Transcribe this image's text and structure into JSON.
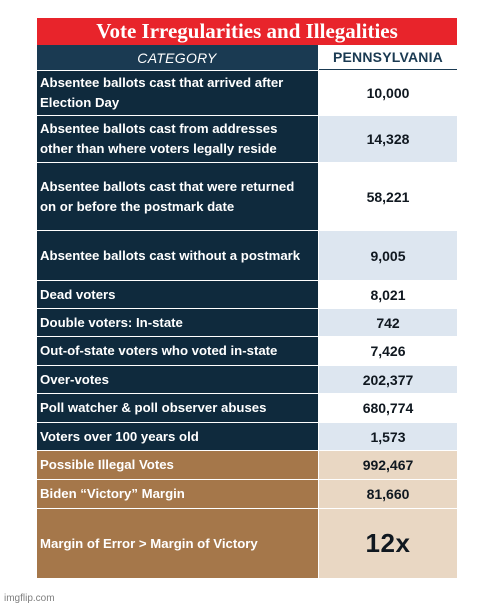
{
  "title": "Vote Irregularities and Illegalities",
  "header": {
    "category": "CATEGORY",
    "state": "PENNSYLVANIA"
  },
  "rows": [
    {
      "label": "Absentee ballots cast that arrived after Election Day",
      "value": "10,000"
    },
    {
      "label": "Absentee ballots cast from addresses other than where voters legally reside",
      "value": "14,328"
    },
    {
      "label": "Absentee ballots cast that were returned on or before the postmark date",
      "value": "58,221"
    },
    {
      "label": "Absentee ballots cast without a postmark",
      "value": "9,005"
    },
    {
      "label": "Dead voters",
      "value": "8,021"
    },
    {
      "label": "Double voters: In-state",
      "value": "742"
    },
    {
      "label": "Out-of-state voters who voted in-state",
      "value": "7,426"
    },
    {
      "label": "Over-votes",
      "value": "202,377"
    },
    {
      "label": "Poll watcher & poll observer abuses",
      "value": "680,774"
    },
    {
      "label": "Voters over 100 years old",
      "value": "1,573"
    }
  ],
  "summary": [
    {
      "label": "Possible Illegal Votes",
      "value": "992,467"
    },
    {
      "label": "Biden “Victory” Margin",
      "value": "81,660"
    },
    {
      "label": "Margin of Error > Margin of Victory",
      "value": "12x"
    }
  ],
  "watermark": "imgflip.com"
}
